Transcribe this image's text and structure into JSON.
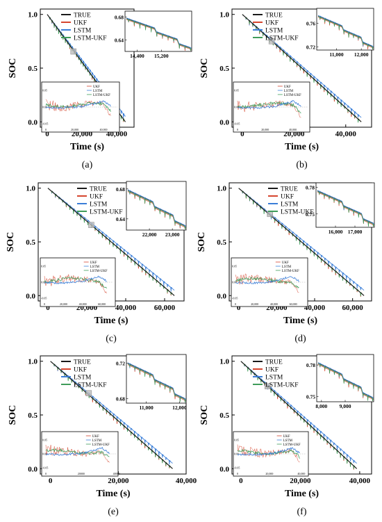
{
  "colors": {
    "TRUE": "#1a1a1a",
    "UKF": "#d6452e",
    "LSTM": "#3a7ed8",
    "LSTM-UKF": "#3f9c5a"
  },
  "chart_data": [
    {
      "type": "line",
      "panel": "(a)",
      "xlabel": "Time (s)",
      "ylabel": "SOC",
      "xlim": [
        -4000,
        50000
      ],
      "ylim": [
        -0.05,
        1.05
      ],
      "x_ticks": [
        0,
        20000,
        40000
      ],
      "x_tick_labels": [
        "0",
        "20,000",
        "40,000"
      ],
      "y_ticks": [
        0.0,
        0.5,
        1.0
      ],
      "y_tick_labels": [
        "0.0",
        "0.5",
        "1.0"
      ],
      "legend": [
        "TRUE",
        "UKF",
        "LSTM",
        "LSTM-UKF"
      ],
      "legend_position": "top-right",
      "series": [
        {
          "name": "TRUE",
          "x": [
            0,
            45000
          ],
          "y": [
            1.0,
            0.0
          ]
        },
        {
          "name": "UKF",
          "x": [
            0,
            45000
          ],
          "y": [
            1.0,
            0.0
          ]
        },
        {
          "name": "LSTM",
          "x": [
            0,
            45000
          ],
          "y": [
            1.0,
            0.05
          ]
        },
        {
          "name": "LSTM-UKF",
          "x": [
            0,
            45000
          ],
          "y": [
            1.0,
            0.0
          ]
        }
      ],
      "zoom_inset": {
        "position": "top-right",
        "xlim": [
          14000,
          16200
        ],
        "ylim": [
          0.62,
          0.69
        ],
        "x_ticks": [
          14400,
          15200
        ],
        "x_tick_labels": [
          "14,400",
          "15,200"
        ],
        "y_ticks": [
          0.64,
          0.68
        ],
        "y_tick_labels": [
          "0.64",
          "0.68"
        ]
      },
      "error_inset": {
        "position": "bottom-left",
        "legend": [
          "UKF",
          "LSTM",
          "LSTM-UKF"
        ],
        "x_ticks": [
          0,
          20000,
          40000
        ],
        "x_tick_labels": [
          "0",
          "20,000",
          "40,000"
        ],
        "y_tick_labels": [
          "0.05",
          "0.00",
          "-0.05"
        ],
        "xmax": 45000
      }
    },
    {
      "type": "line",
      "panel": "(b)",
      "xlabel": "Time (s)",
      "ylabel": "SOC",
      "xlim": [
        -4000,
        50000
      ],
      "ylim": [
        -0.05,
        1.05
      ],
      "x_ticks": [
        0,
        20000,
        40000
      ],
      "x_tick_labels": [
        "0",
        "20,000",
        "40,000"
      ],
      "y_ticks": [
        0.0,
        0.5,
        1.0
      ],
      "y_tick_labels": [
        "0.0",
        "0.5",
        "1.0"
      ],
      "legend": [
        "TRUE",
        "UKF",
        "LSTM",
        "LSTM-UKF"
      ],
      "legend_position": "top-right",
      "series": [
        {
          "name": "TRUE",
          "x": [
            0,
            46000
          ],
          "y": [
            1.0,
            0.0
          ]
        },
        {
          "name": "UKF",
          "x": [
            0,
            46000
          ],
          "y": [
            1.0,
            0.0
          ]
        },
        {
          "name": "LSTM",
          "x": [
            0,
            46000
          ],
          "y": [
            1.0,
            0.04
          ]
        },
        {
          "name": "LSTM-UKF",
          "x": [
            0,
            46000
          ],
          "y": [
            1.0,
            0.0
          ]
        }
      ],
      "zoom_inset": {
        "position": "top-right",
        "xlim": [
          10200,
          12500
        ],
        "ylim": [
          0.715,
          0.785
        ],
        "x_ticks": [
          11000,
          12000
        ],
        "x_tick_labels": [
          "11,000",
          "12,000"
        ],
        "y_ticks": [
          0.72,
          0.76
        ],
        "y_tick_labels": [
          "0.72",
          "0.76"
        ]
      },
      "error_inset": {
        "position": "bottom-left",
        "legend": [
          "UKF",
          "LSTM",
          "LSTM-UKF"
        ],
        "x_ticks": [
          0,
          20000,
          40000
        ],
        "x_tick_labels": [
          "0",
          "20,000",
          "40,000"
        ],
        "y_tick_labels": [
          "0.05",
          "0.00",
          "-0.05"
        ],
        "xmax": 46000
      }
    },
    {
      "type": "line",
      "panel": "(c)",
      "xlabel": "Time (s)",
      "ylabel": "SOC",
      "xlim": [
        -5000,
        70000
      ],
      "ylim": [
        -0.05,
        1.05
      ],
      "x_ticks": [
        0,
        20000,
        40000,
        60000
      ],
      "x_tick_labels": [
        "0",
        "20,000",
        "40,000",
        "60,000"
      ],
      "y_ticks": [
        0.0,
        0.5,
        1.0
      ],
      "y_tick_labels": [
        "0.0",
        "0.5",
        "1.0"
      ],
      "legend": [
        "TRUE",
        "UKF",
        "LSTM",
        "LSTM-UKF"
      ],
      "legend_position": "top-right",
      "series": [
        {
          "name": "TRUE",
          "x": [
            0,
            65000
          ],
          "y": [
            1.0,
            0.0
          ]
        },
        {
          "name": "UKF",
          "x": [
            0,
            65000
          ],
          "y": [
            1.0,
            0.0
          ]
        },
        {
          "name": "LSTM",
          "x": [
            0,
            65000
          ],
          "y": [
            1.0,
            0.05
          ]
        },
        {
          "name": "LSTM-UKF",
          "x": [
            0,
            65000
          ],
          "y": [
            1.0,
            0.0
          ]
        }
      ],
      "zoom_inset": {
        "position": "top-right",
        "xlim": [
          21000,
          23600
        ],
        "ylim": [
          0.625,
          0.69
        ],
        "x_ticks": [
          22000,
          23000
        ],
        "x_tick_labels": [
          "22,000",
          "23,000"
        ],
        "y_ticks": [
          0.64,
          0.68
        ],
        "y_tick_labels": [
          "0.64",
          "0.68"
        ]
      },
      "error_inset": {
        "position": "bottom-left",
        "legend": [
          "UKF",
          "LSTM",
          "LSTM-UKF"
        ],
        "x_ticks": [
          0,
          20000,
          40000,
          60000
        ],
        "x_tick_labels": [
          "0",
          "20,000",
          "40,000",
          "60,000"
        ],
        "y_tick_labels": [
          "0.05",
          "0.00",
          "-0.05"
        ],
        "xmax": 65000
      }
    },
    {
      "type": "line",
      "panel": "(d)",
      "xlabel": "Time (s)",
      "ylabel": "SOC",
      "xlim": [
        -5000,
        70000
      ],
      "ylim": [
        -0.05,
        1.05
      ],
      "x_ticks": [
        0,
        20000,
        40000,
        60000
      ],
      "x_tick_labels": [
        "0",
        "20,000",
        "40,000",
        "60,000"
      ],
      "y_ticks": [
        0.0,
        0.5,
        1.0
      ],
      "y_tick_labels": [
        "0.0",
        "0.5",
        "1.0"
      ],
      "legend": [
        "TRUE",
        "UKF",
        "LSTM",
        "LSTM-UKF"
      ],
      "legend_position": "top-right",
      "series": [
        {
          "name": "TRUE",
          "x": [
            0,
            66000
          ],
          "y": [
            1.0,
            0.0
          ]
        },
        {
          "name": "UKF",
          "x": [
            0,
            66000
          ],
          "y": [
            1.0,
            0.0
          ]
        },
        {
          "name": "LSTM",
          "x": [
            0,
            66000
          ],
          "y": [
            1.0,
            0.05
          ]
        },
        {
          "name": "LSTM-UKF",
          "x": [
            0,
            66000
          ],
          "y": [
            1.0,
            0.0
          ]
        }
      ],
      "zoom_inset": {
        "position": "top-right",
        "xlim": [
          15000,
          18000
        ],
        "ylim": [
          0.735,
          0.785
        ],
        "x_ticks": [
          16000,
          17000
        ],
        "x_tick_labels": [
          "16,000",
          "17,000"
        ],
        "y_ticks": [
          0.75,
          0.78
        ],
        "y_tick_labels": [
          "0.75",
          "0.78"
        ]
      },
      "error_inset": {
        "position": "bottom-left",
        "legend": [
          "UKF",
          "LSTM",
          "LSTM-UKF"
        ],
        "x_ticks": [
          0,
          20000,
          40000,
          60000
        ],
        "x_tick_labels": [
          "0",
          "20,000",
          "40,000",
          "60,000"
        ],
        "y_tick_labels": [
          "0.05",
          "0.00",
          "-0.05"
        ],
        "xmax": 66000
      }
    },
    {
      "type": "line",
      "panel": "(e)",
      "xlabel": "Time (s)",
      "ylabel": "SOC",
      "xlim": [
        -3000,
        40000
      ],
      "ylim": [
        -0.05,
        1.05
      ],
      "x_ticks": [
        0,
        20000,
        40000
      ],
      "x_tick_labels": [
        "0",
        "20,000",
        "40,000"
      ],
      "y_ticks": [
        0.0,
        0.5,
        1.0
      ],
      "y_tick_labels": [
        "0.0",
        "0.5",
        "1.0"
      ],
      "legend": [
        "TRUE",
        "UKF",
        "LSTM",
        "LSTM-UKF"
      ],
      "legend_position": "top-right",
      "series": [
        {
          "name": "TRUE",
          "x": [
            0,
            36000
          ],
          "y": [
            1.0,
            0.0
          ]
        },
        {
          "name": "UKF",
          "x": [
            0,
            36000
          ],
          "y": [
            1.0,
            0.0
          ]
        },
        {
          "name": "LSTM",
          "x": [
            0,
            36000
          ],
          "y": [
            1.0,
            0.05
          ]
        },
        {
          "name": "LSTM-UKF",
          "x": [
            0,
            36000
          ],
          "y": [
            1.0,
            0.0
          ]
        }
      ],
      "zoom_inset": {
        "position": "top-right",
        "xlim": [
          10400,
          12200
        ],
        "ylim": [
          0.675,
          0.73
        ],
        "x_ticks": [
          11000,
          12000
        ],
        "x_tick_labels": [
          "11,000",
          "12,000"
        ],
        "y_ticks": [
          0.68,
          0.72
        ],
        "y_tick_labels": [
          "0.68",
          "0.72"
        ]
      },
      "error_inset": {
        "position": "bottom-left",
        "legend": [
          "UKF",
          "LSTM",
          "LSTM-UKF"
        ],
        "x_ticks": [
          0,
          20000,
          40000
        ],
        "x_tick_labels": [
          "0",
          "20000",
          "40000"
        ],
        "y_tick_labels": [
          "0.05",
          "0.00",
          "-0.05"
        ],
        "xmax": 36000
      }
    },
    {
      "type": "line",
      "panel": "(f)",
      "xlabel": "Time (s)",
      "ylabel": "SOC",
      "xlim": [
        -3000,
        44000
      ],
      "ylim": [
        -0.05,
        1.05
      ],
      "x_ticks": [
        0,
        20000,
        40000
      ],
      "x_tick_labels": [
        "0",
        "20,000",
        "40,000"
      ],
      "y_ticks": [
        0.0,
        0.5,
        1.0
      ],
      "y_tick_labels": [
        "0.0",
        "0.5",
        "1.0"
      ],
      "legend": [
        "TRUE",
        "UKF",
        "LSTM",
        "LSTM-UKF"
      ],
      "legend_position": "top-right",
      "series": [
        {
          "name": "TRUE",
          "x": [
            0,
            39000
          ],
          "y": [
            1.0,
            0.0
          ]
        },
        {
          "name": "UKF",
          "x": [
            0,
            39000
          ],
          "y": [
            1.0,
            0.0
          ]
        },
        {
          "name": "LSTM",
          "x": [
            0,
            39000
          ],
          "y": [
            1.0,
            0.05
          ]
        },
        {
          "name": "LSTM-UKF",
          "x": [
            0,
            39000
          ],
          "y": [
            1.0,
            0.0
          ]
        }
      ],
      "zoom_inset": {
        "position": "top-right",
        "xlim": [
          7800,
          10200
        ],
        "ylim": [
          0.745,
          0.79
        ],
        "x_ticks": [
          8000,
          9000
        ],
        "x_tick_labels": [
          "8,000",
          "9,000"
        ],
        "y_ticks": [
          0.75,
          0.78
        ],
        "y_tick_labels": [
          "0.75",
          "0.78"
        ]
      },
      "error_inset": {
        "position": "bottom-left",
        "legend": [
          "UKF",
          "LSTM",
          "LSTM-UKF"
        ],
        "x_ticks": [
          0,
          20000,
          40000
        ],
        "x_tick_labels": [
          "0",
          "20,000",
          "40,000"
        ],
        "y_tick_labels": [
          "0.05",
          "0.00",
          "-0.05"
        ],
        "xmax": 39000
      }
    }
  ]
}
